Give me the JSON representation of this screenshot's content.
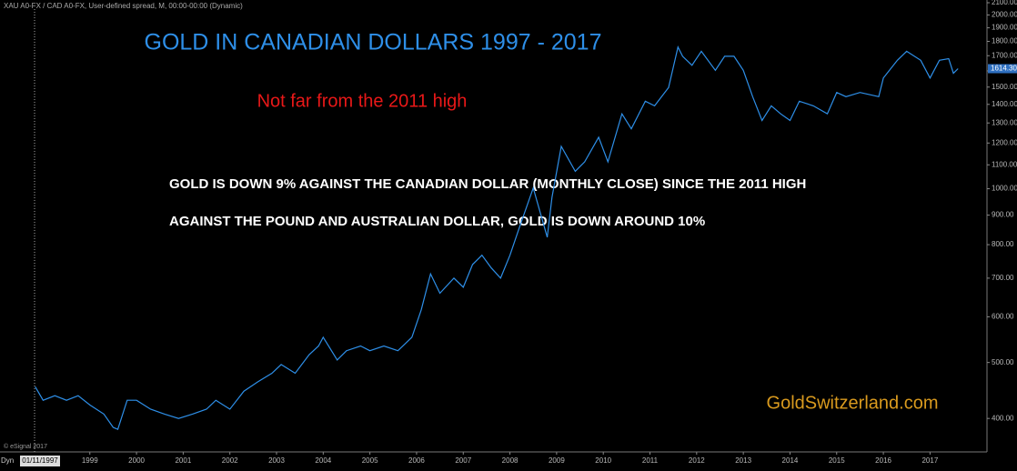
{
  "chart_data": {
    "type": "line",
    "header": "XAU A0-FX / CAD A0-FX, User-defined spread, M, 00:00-00:00 (Dynamic)",
    "title": "GOLD IN CANADIAN DOLLARS  1997 - 2017",
    "subtitle": "Not far from the 2011 high",
    "annotations": [
      "GOLD IS DOWN 9% AGAINST THE CANADIAN DOLLAR (MONTHLY CLOSE) SINCE THE 2011 HIGH",
      "AGAINST THE POUND AND AUSTRALIAN DOLLAR, GOLD IS DOWN AROUND 10%"
    ],
    "watermark": "GoldSwitzerland.com",
    "cursor_date": "01/11/1997",
    "interval_label": "Dyn",
    "copyright": "© eSignal 2017",
    "current_price_label": "1614.30",
    "log_scale": true,
    "grid": false,
    "color": "#2e8fe8",
    "xlim": [
      1997.66,
      2018.22
    ],
    "xticks": [
      1999,
      2000,
      2001,
      2002,
      2003,
      2004,
      2005,
      2006,
      2007,
      2008,
      2009,
      2010,
      2011,
      2012,
      2013,
      2014,
      2015,
      2016,
      2017
    ],
    "ylim": [
      350,
      2100
    ],
    "yticks": [
      {
        "value": 2100,
        "label": "2100.00"
      },
      {
        "value": 2000,
        "label": "2000.00"
      },
      {
        "value": 1900,
        "label": "1900.00"
      },
      {
        "value": 1800,
        "label": "1800.00"
      },
      {
        "value": 1700,
        "label": "1700.00"
      },
      {
        "value": 1600,
        "label": "1600.00"
      },
      {
        "value": 1500,
        "label": "1500.00"
      },
      {
        "value": 1400,
        "label": "1400.00"
      },
      {
        "value": 1300,
        "label": "1300.00"
      },
      {
        "value": 1200,
        "label": "1200.00"
      },
      {
        "value": 1100,
        "label": "1100.00"
      },
      {
        "value": 1000,
        "label": "1000.00"
      },
      {
        "value": 900,
        "label": "900.00"
      },
      {
        "value": 800,
        "label": "800.00"
      },
      {
        "value": 700,
        "label": "700.00"
      },
      {
        "value": 600,
        "label": "600.00"
      },
      {
        "value": 500,
        "label": "500.00"
      },
      {
        "value": 400,
        "label": "400.00"
      }
    ],
    "x": [
      1997.83,
      1998.0,
      1998.25,
      1998.5,
      1998.75,
      1999.0,
      1999.3,
      1999.5,
      1999.6,
      1999.8,
      2000.0,
      2000.3,
      2000.6,
      2000.9,
      2001.2,
      2001.5,
      2001.7,
      2002.0,
      2002.3,
      2002.6,
      2002.9,
      2003.1,
      2003.4,
      2003.7,
      2003.9,
      2004.0,
      2004.3,
      2004.5,
      2004.8,
      2005.0,
      2005.3,
      2005.6,
      2005.9,
      2006.1,
      2006.3,
      2006.5,
      2006.8,
      2007.0,
      2007.2,
      2007.4,
      2007.6,
      2007.8,
      2008.0,
      2008.2,
      2008.5,
      2008.8,
      2008.9,
      2009.1,
      2009.4,
      2009.6,
      2009.9,
      2010.1,
      2010.4,
      2010.6,
      2010.9,
      2011.1,
      2011.4,
      2011.6,
      2011.7,
      2011.9,
      2012.1,
      2012.4,
      2012.6,
      2012.8,
      2013.0,
      2013.2,
      2013.4,
      2013.6,
      2013.8,
      2014.0,
      2014.2,
      2014.5,
      2014.8,
      2015.0,
      2015.2,
      2015.5,
      2015.9,
      2016.0,
      2016.3,
      2016.5,
      2016.8,
      2017.0,
      2017.2,
      2017.4,
      2017.5,
      2017.6
    ],
    "values": [
      454,
      430,
      438,
      430,
      438,
      422,
      407,
      386,
      383,
      430,
      430,
      415,
      407,
      400,
      407,
      415,
      430,
      415,
      446,
      463,
      479,
      496,
      479,
      516,
      534,
      553,
      505,
      524,
      534,
      524,
      534,
      524,
      553,
      617,
      712,
      659,
      700,
      675,
      739,
      767,
      729,
      700,
      767,
      855,
      1003,
      824,
      966,
      1184,
      1072,
      1113,
      1228,
      1113,
      1348,
      1270,
      1418,
      1392,
      1497,
      1760,
      1696,
      1636,
      1730,
      1604,
      1696,
      1696,
      1604,
      1444,
      1313,
      1392,
      1348,
      1313,
      1418,
      1392,
      1348,
      1468,
      1444,
      1468,
      1444,
      1555,
      1669,
      1730,
      1669,
      1555,
      1669,
      1680,
      1585,
      1614.3
    ]
  }
}
